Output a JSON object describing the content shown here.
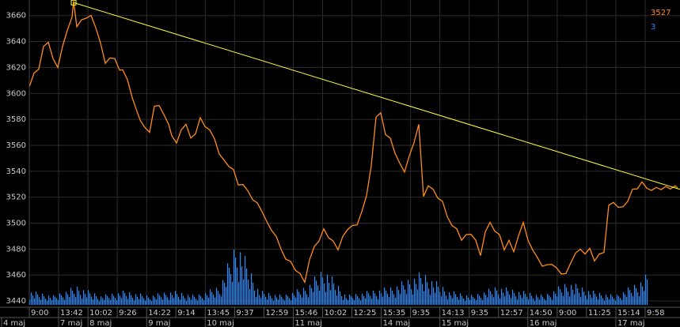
{
  "chart_data": {
    "type": "line",
    "y_ticks": [
      "3660",
      "3640",
      "3620",
      "3600",
      "3580",
      "3560",
      "3540",
      "3520",
      "3500",
      "3480",
      "3460",
      "3440"
    ],
    "ylim": [
      3437,
      3672
    ],
    "time_labels": [
      "9:00",
      "13:42",
      "10:02",
      "9:26",
      "14:22",
      "9:14",
      "13:45",
      "9:37",
      "12:59",
      "15:46",
      "10:02",
      "12:25",
      "15:35",
      "9:35",
      "14:13",
      "9:35",
      "12:57",
      "14:50",
      "9:00",
      "11:25",
      "15:14",
      "9:58"
    ],
    "day_labels": [
      "4 maj",
      "7 maj",
      "8 maj",
      "9 maj",
      "10 maj",
      "11 maj",
      "14 maj",
      "15 maj",
      "16 maj",
      "17 maj"
    ],
    "series": [
      {
        "name": "3527",
        "color": "#ff8c1a",
        "x": [
          0,
          6,
          12,
          18,
          24,
          30,
          36,
          42,
          48,
          54,
          56,
          60,
          66,
          72,
          78,
          84,
          90,
          96,
          102,
          108,
          114,
          118,
          124,
          130,
          136,
          140,
          146,
          152,
          158,
          164,
          170,
          176,
          180,
          186,
          192,
          198,
          204,
          210,
          216,
          222,
          228,
          234,
          240,
          246,
          252,
          258,
          264,
          270,
          276,
          282,
          288,
          294,
          300,
          306,
          312,
          318,
          324,
          330,
          336,
          342,
          348,
          354,
          360,
          366,
          372,
          378,
          384,
          390,
          396,
          402,
          408,
          414,
          420,
          426,
          432,
          438,
          444,
          450,
          456,
          462,
          468,
          474,
          480,
          486,
          492,
          498,
          504,
          510,
          516,
          522,
          528,
          534,
          540,
          546,
          552,
          558,
          564,
          570,
          576,
          582,
          588,
          594,
          600,
          606,
          612,
          618,
          624,
          630,
          636,
          642,
          648,
          654,
          660,
          666,
          672,
          678,
          684,
          690,
          696,
          702,
          708,
          714,
          720,
          726,
          732,
          738,
          744,
          750,
          756,
          762,
          768,
          774,
          780,
          786,
          792,
          798,
          804,
          810,
          816,
          819
        ],
        "values": [
          3605,
          3615,
          3620,
          3635,
          3640,
          3625,
          3620,
          3638,
          3648,
          3660,
          3670,
          3652,
          3655,
          3658,
          3662,
          3650,
          3640,
          3622,
          3628,
          3625,
          3618,
          3620,
          3610,
          3598,
          3585,
          3580,
          3572,
          3570,
          3592,
          3590,
          3585,
          3575,
          3568,
          3560,
          3572,
          3578,
          3565,
          3570,
          3580,
          3575,
          3570,
          3565,
          3555,
          3548,
          3545,
          3540,
          3530,
          3528,
          3525,
          3520,
          3515,
          3510,
          3500,
          3495,
          3488,
          3480,
          3474,
          3470,
          3465,
          3460,
          3455,
          3470,
          3482,
          3488,
          3495,
          3490,
          3485,
          3480,
          3488,
          3495,
          3500,
          3498,
          3510,
          3520,
          3545,
          3580,
          3585,
          3570,
          3565,
          3555,
          3545,
          3540,
          3550,
          3562,
          3578,
          3520,
          3530,
          3525,
          3520,
          3515,
          3505,
          3500,
          3495,
          3488,
          3490,
          3492,
          3485,
          3475,
          3495,
          3500,
          3495,
          3490,
          3480,
          3485,
          3478,
          3492,
          3500,
          3488,
          3478,
          3474,
          3465,
          3468,
          3470,
          3465,
          3462,
          3460,
          3470,
          3475,
          3480,
          3478,
          3480,
          3472,
          3475,
          3478,
          3512,
          3516,
          3514,
          3512,
          3518,
          3525,
          3527,
          3530,
          3527,
          3527,
          3527,
          3527,
          3527,
          3527,
          3527,
          3527
        ]
      },
      {
        "name": "3",
        "color": "#1e90ff",
        "x": [
          0,
          30,
          60,
          90,
          120,
          150,
          180,
          210,
          240,
          262,
          290,
          320,
          350,
          372,
          400,
          430,
          460,
          496,
          530,
          560,
          590,
          620,
          650,
          680,
          710,
          740,
          770,
          790,
          805,
          819
        ],
        "values": [
          3,
          2,
          4,
          2,
          3,
          2,
          3,
          2,
          4,
          14,
          3,
          2,
          4,
          8,
          2,
          3,
          4,
          7,
          3,
          2,
          4,
          3,
          2,
          5,
          3,
          2,
          5,
          8,
          6,
          4
        ]
      }
    ],
    "trendline": {
      "color": "#ffff33",
      "x": [
        56,
        859
      ],
      "values": [
        3670,
        3526
      ]
    },
    "grid": true
  }
}
